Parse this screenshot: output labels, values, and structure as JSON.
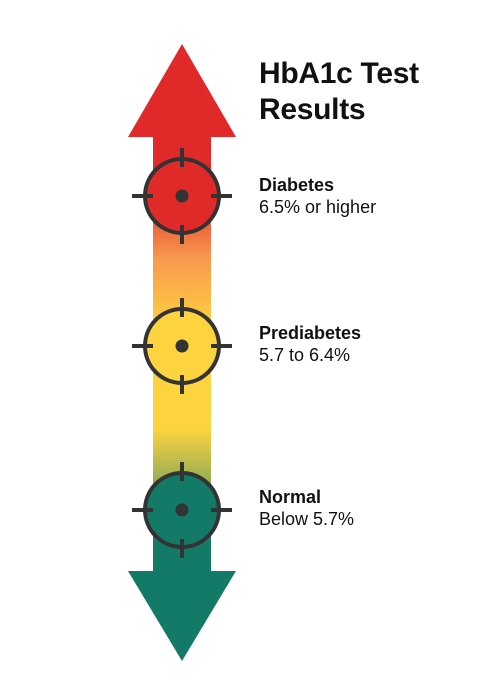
{
  "title": "HbA1c Test Results",
  "levels": [
    {
      "name": "Diabetes",
      "range": "6.5% or higher",
      "color": "#e02a2a"
    },
    {
      "name": "Prediabetes",
      "range": "5.7 to 6.4%",
      "color": "#fdd43f"
    },
    {
      "name": "Normal",
      "range": "Below 5.7%",
      "color": "#137a67"
    }
  ],
  "colors": {
    "arrow_top": "#e02a2a",
    "arrow_middle": "#fdd43f",
    "arrow_bottom": "#137a67",
    "target_outline": "#333333"
  },
  "icons": [
    "crosshair-target-icon",
    "arrow-up-icon",
    "arrow-down-icon"
  ]
}
